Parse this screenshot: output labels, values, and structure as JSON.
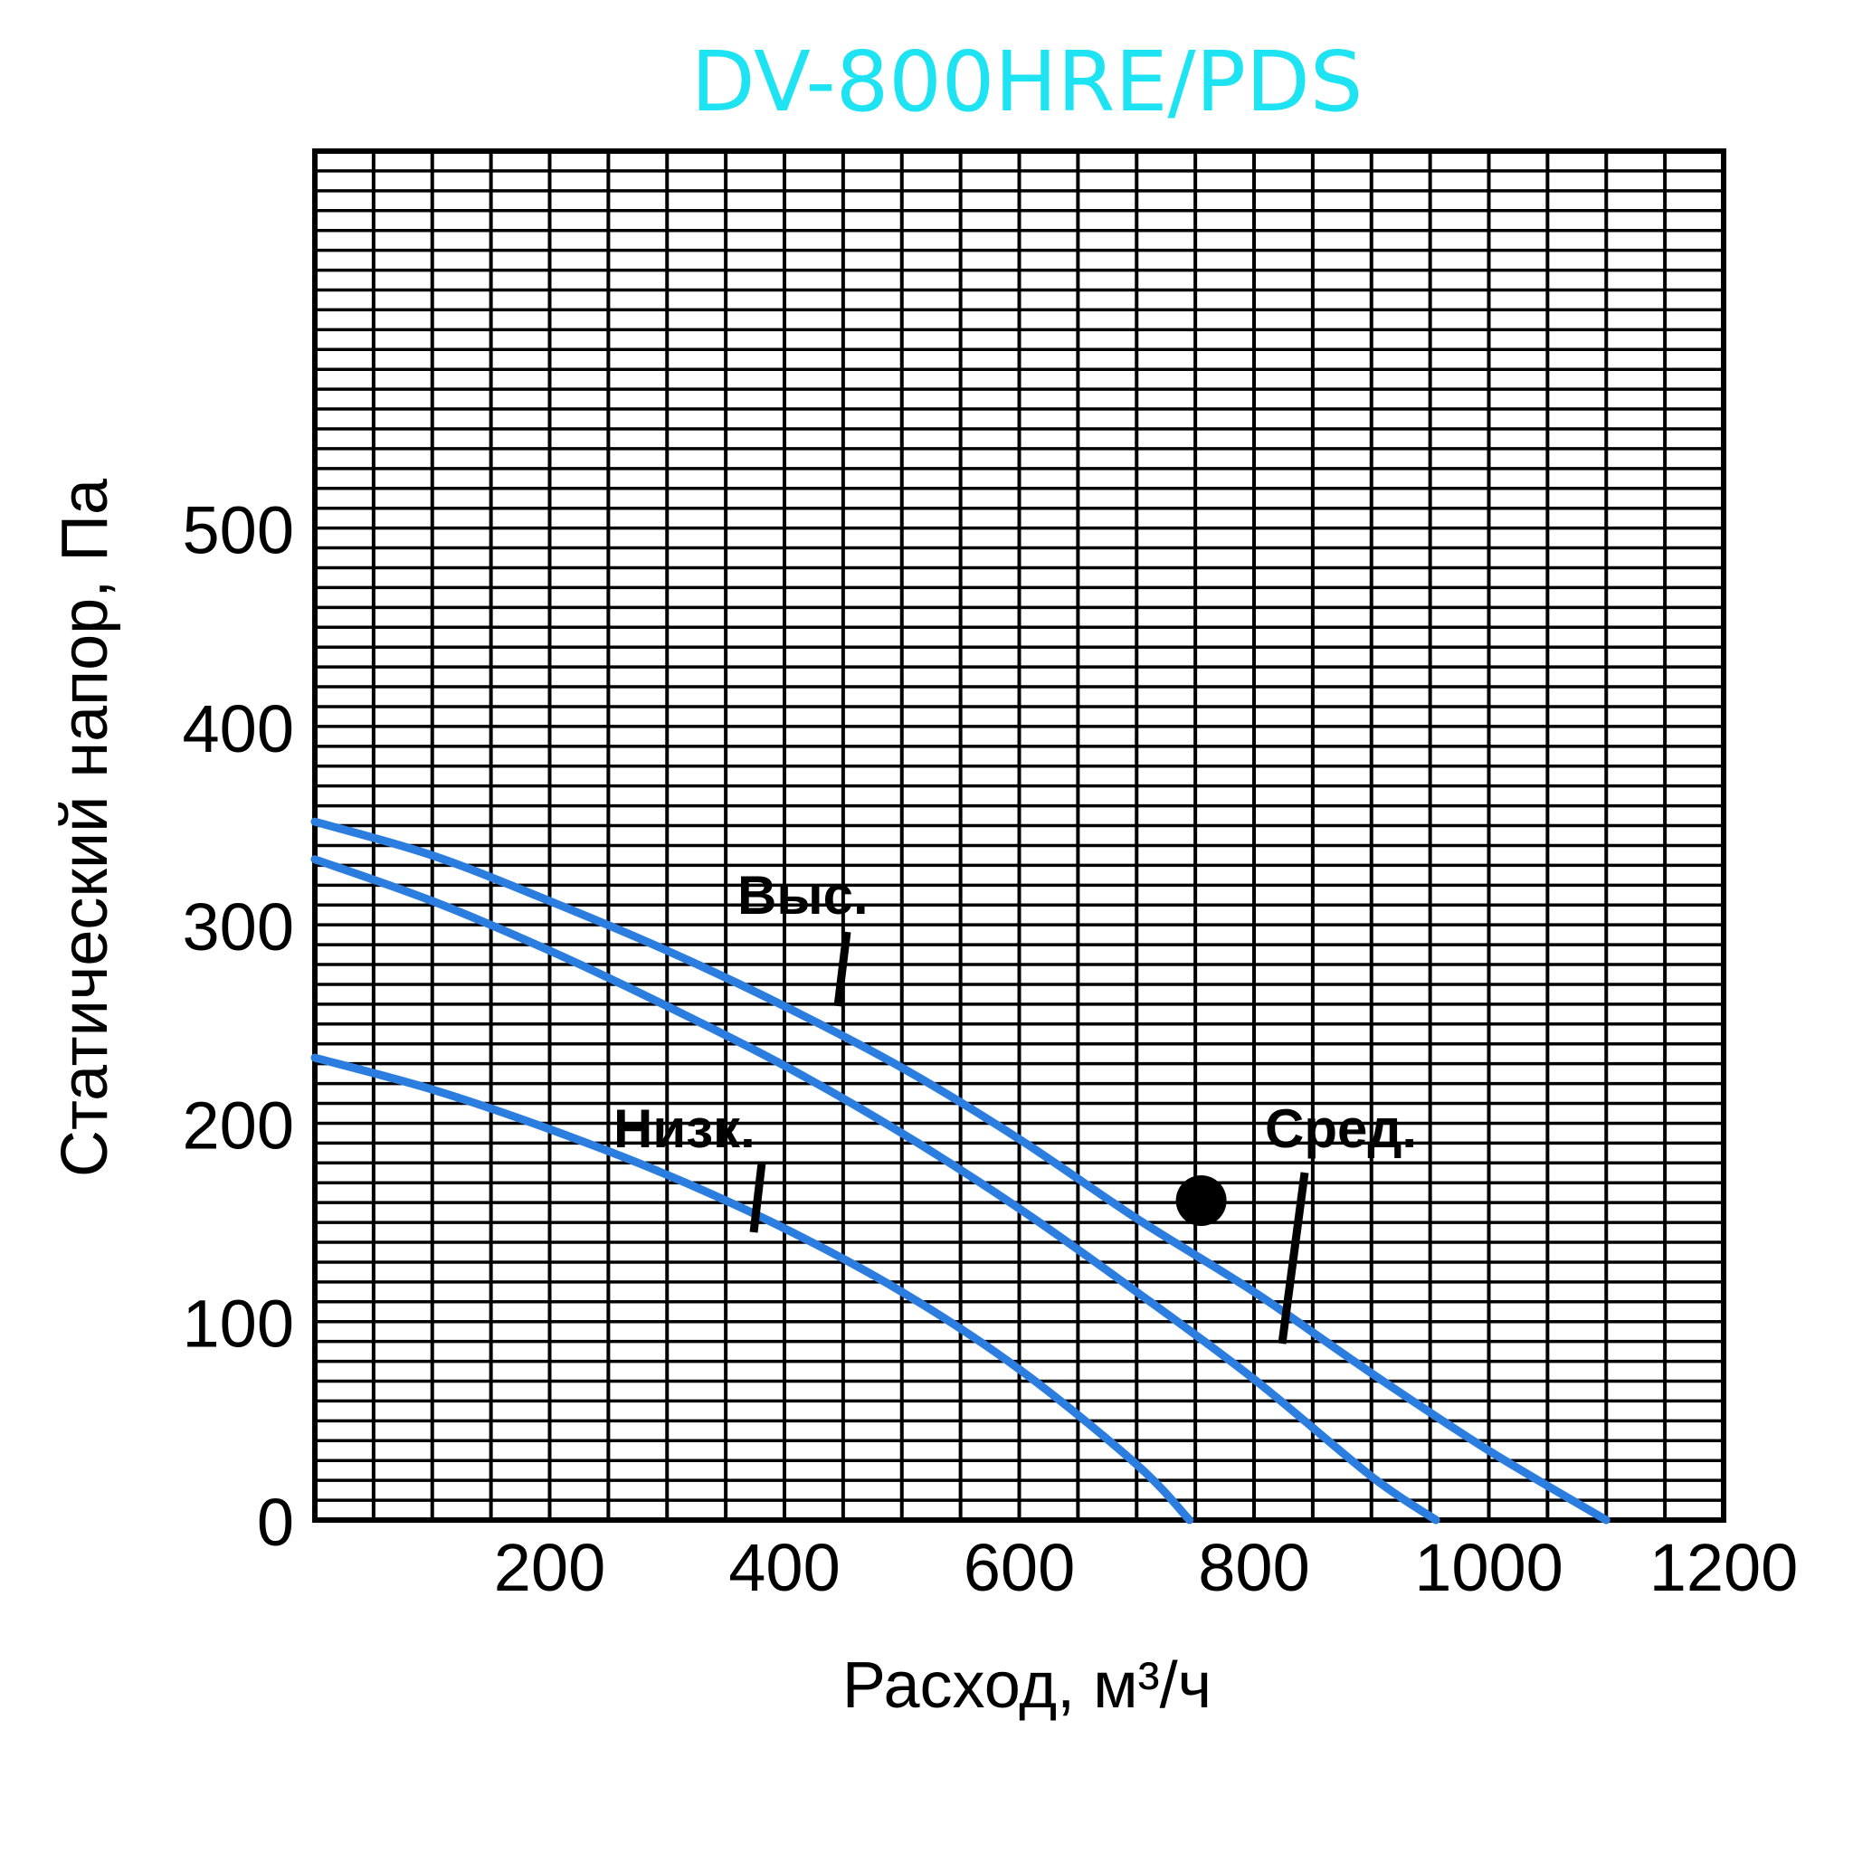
{
  "colors": {
    "title": "#1ee3f2",
    "curve": "#2b7de0",
    "grid": "#000000",
    "background": "#ffffff"
  },
  "chart_data": {
    "type": "line",
    "title": "DV-800HRE/PDS",
    "xlabel": "Расход, м³/ч",
    "ylabel": "Статический напор, Па",
    "xlim": [
      0,
      1200
    ],
    "ylim": [
      0,
      690
    ],
    "x_ticks": [
      200,
      400,
      600,
      800,
      1000,
      1200
    ],
    "y_ticks": [
      0,
      100,
      200,
      300,
      400,
      500
    ],
    "x_tick_labels": [
      "200",
      "400",
      "600",
      "800",
      "1000",
      "1200"
    ],
    "y_tick_labels": [
      "0",
      "100",
      "200",
      "300",
      "400",
      "500"
    ],
    "grid": true,
    "series": [
      {
        "name": "Выс.",
        "x": [
          0,
          100,
          200,
          300,
          400,
          500,
          600,
          700,
          800,
          900,
          1000,
          1100
        ],
        "y": [
          352,
          335,
          312,
          287,
          259,
          228,
          192,
          152,
          115,
          74,
          35,
          0
        ]
      },
      {
        "name": "Сред.",
        "x": [
          0,
          100,
          200,
          300,
          400,
          500,
          600,
          700,
          800,
          900,
          955
        ],
        "y": [
          333,
          312,
          287,
          259,
          229,
          195,
          157,
          115,
          71,
          22,
          0
        ]
      },
      {
        "name": "Низк.",
        "x": [
          0,
          100,
          200,
          300,
          400,
          500,
          600,
          700,
          745
        ],
        "y": [
          233,
          217,
          197,
          174,
          147,
          115,
          76,
          28,
          0
        ]
      }
    ],
    "marker": {
      "x": 755,
      "y": 161
    }
  }
}
